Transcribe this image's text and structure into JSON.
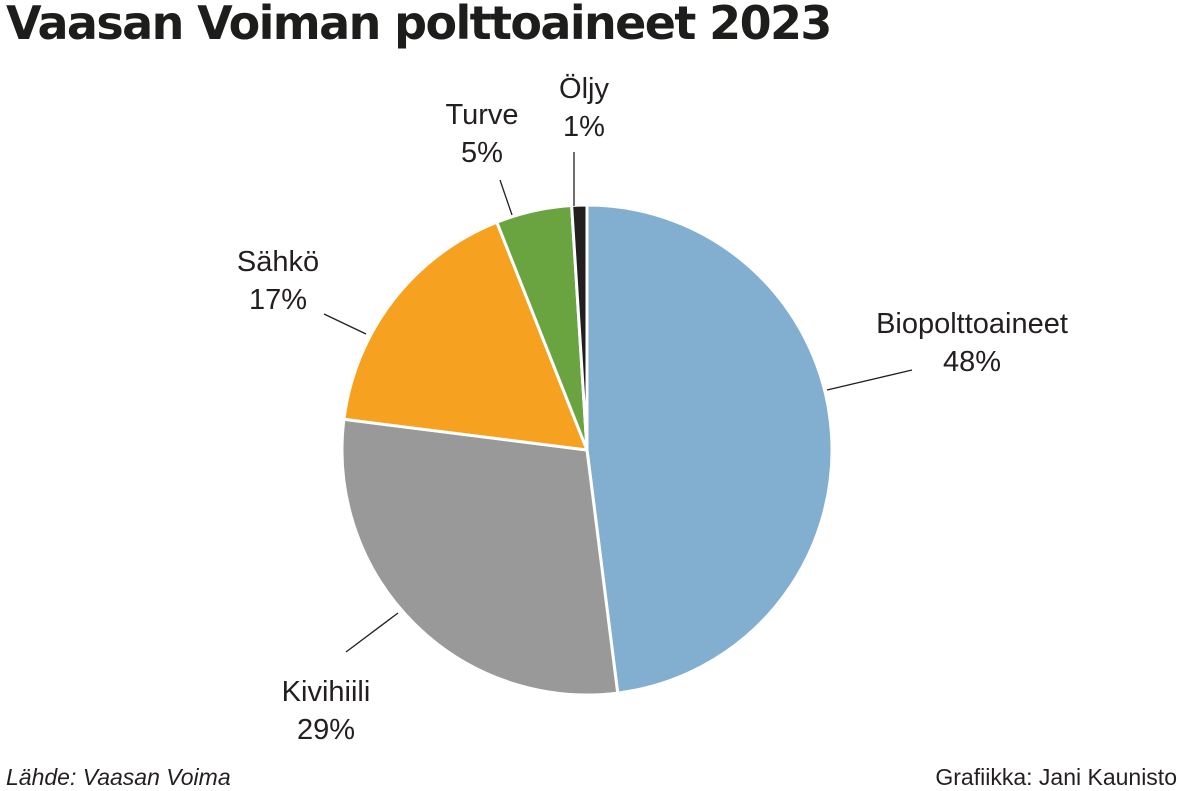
{
  "title": "Vaasan Voiman polttoaineet 2023",
  "source": "Lähde: Vaasan Voima",
  "credit": "Grafiikka: Jani Kaunisto",
  "chart_data": {
    "type": "pie",
    "title": "Vaasan Voiman polttoaineet 2023",
    "unit": "%",
    "start": "12 o'clock",
    "direction": "clockwise",
    "slices": [
      {
        "label": "Biopolttoaineet",
        "value": 48,
        "value_label": "48%",
        "color": "#82aed0"
      },
      {
        "label": "Kivihiili",
        "value": 29,
        "value_label": "29%",
        "color": "#999999"
      },
      {
        "label": "Sähkö",
        "value": 17,
        "value_label": "17%",
        "color": "#f6a11f"
      },
      {
        "label": "Turve",
        "value": 5,
        "value_label": "5%",
        "color": "#6aa441"
      },
      {
        "label": "Öljy",
        "value": 1,
        "value_label": "1%",
        "color": "#231f20"
      }
    ]
  }
}
